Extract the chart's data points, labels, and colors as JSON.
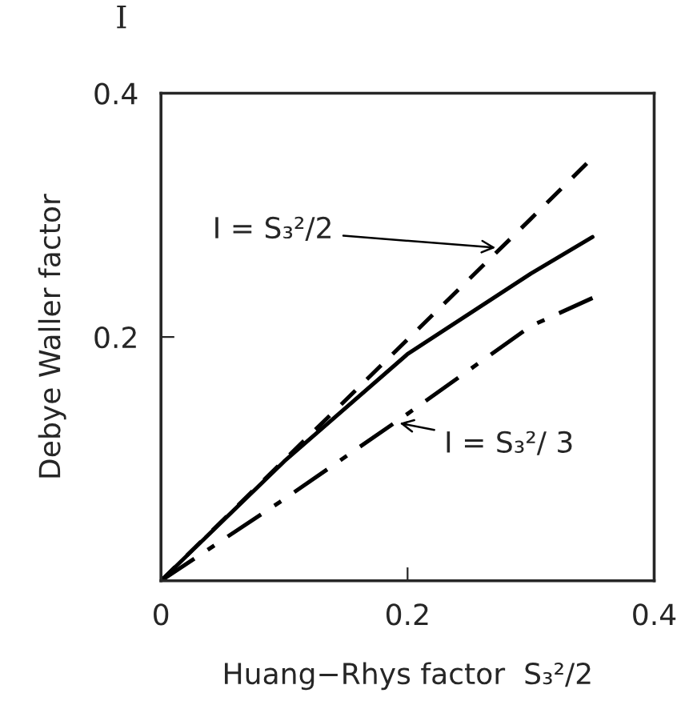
{
  "chart_data": {
    "type": "line",
    "xlabel": "Huang−Rhys factor  S₃²/2",
    "ylabel": "Debye Waller factor",
    "x": [
      0,
      0.1,
      0.2,
      0.3,
      0.35
    ],
    "series": [
      {
        "color": "#000000",
        "line_style": "dashed",
        "values": [
          0,
          0.099,
          0.198,
          0.297,
          0.347
        ]
      },
      {
        "color": "#000000",
        "line_style": "solid",
        "values": [
          0,
          0.098,
          0.186,
          0.252,
          0.282
        ]
      },
      {
        "color": "#000000",
        "line_style": "dashdot",
        "values": [
          0,
          0.067,
          0.137,
          0.209,
          0.232
        ]
      }
    ],
    "annotations": [
      "I",
      {
        "text": "I = S₃²/2",
        "x": 0.275,
        "y": 0.273
      },
      {
        "text": "I = S₃²/ 3",
        "x": 0.19,
        "y": 0.13
      }
    ],
    "xlim": [
      0,
      0.4
    ],
    "ylim": [
      0,
      0.4
    ],
    "xticks": [
      0,
      0.2,
      0.4
    ],
    "yticks": [
      0.2,
      0.4
    ]
  }
}
